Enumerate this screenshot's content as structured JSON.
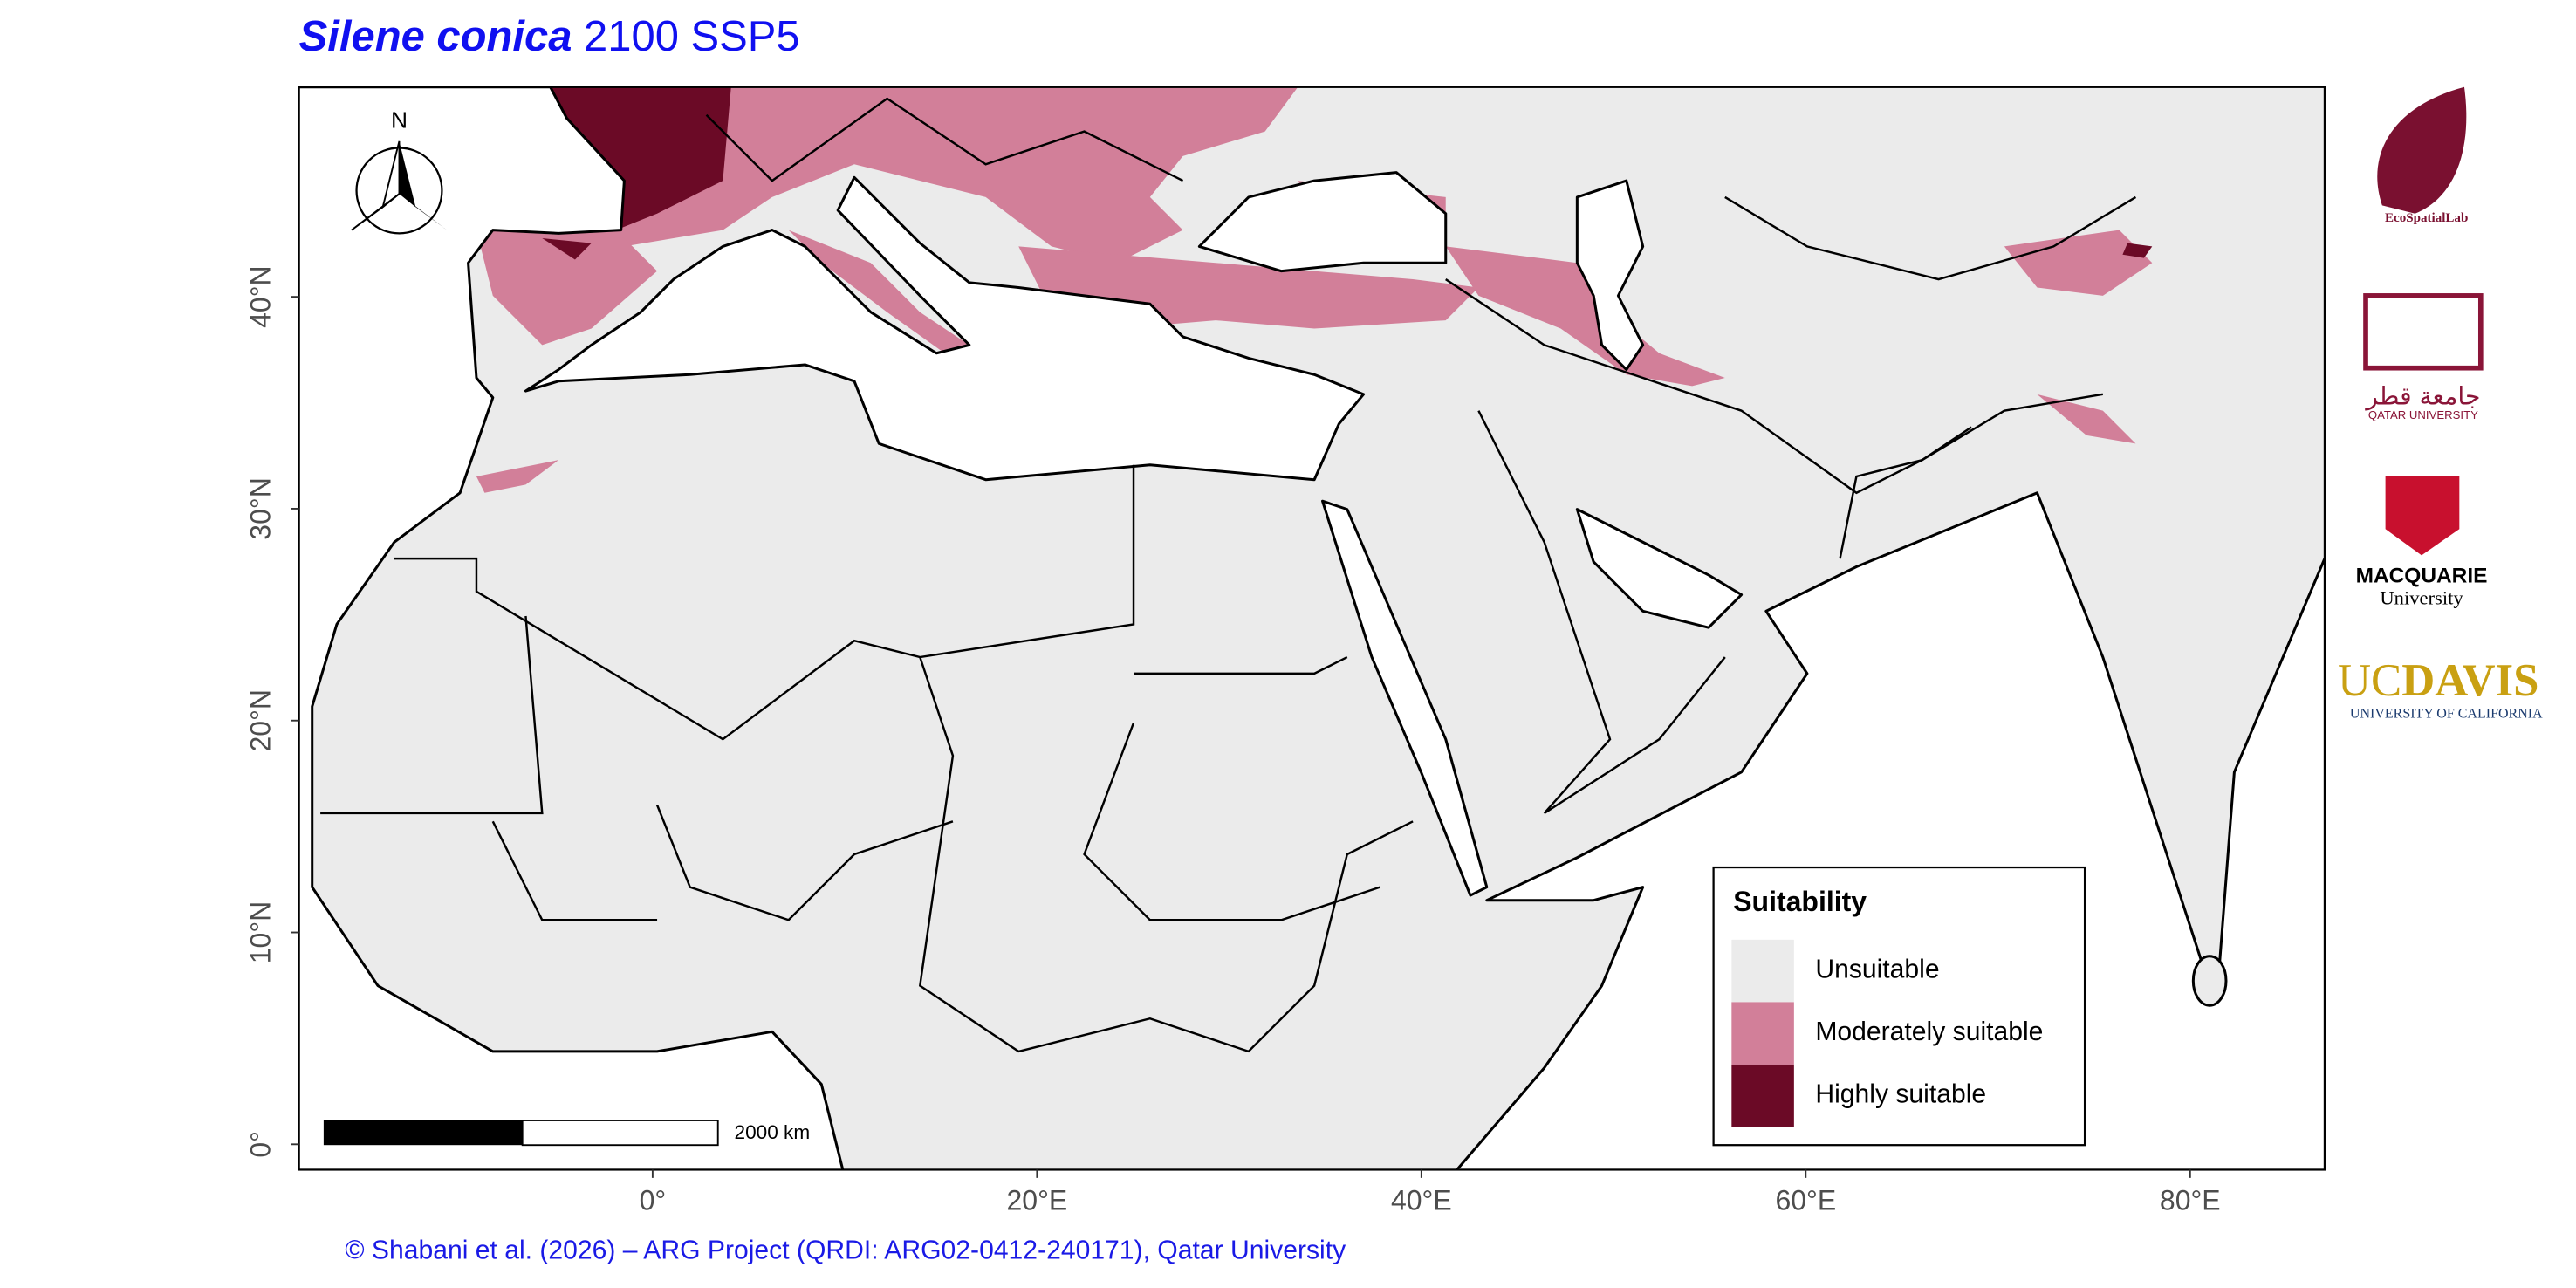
{
  "map": {
    "title": {
      "species": "Silene conica",
      "scenario": "2100 SSP5"
    },
    "xlim": [
      -18.4,
      87
    ],
    "ylim": [
      -1.2,
      49.9
    ],
    "xticks": [
      {
        "value": 0,
        "label": "0°"
      },
      {
        "value": 20,
        "label": "20°E"
      },
      {
        "value": 40,
        "label": "40°E"
      },
      {
        "value": 60,
        "label": "60°E"
      },
      {
        "value": 80,
        "label": "80°E"
      }
    ],
    "yticks": [
      {
        "value": 0,
        "label": "0°"
      },
      {
        "value": 10,
        "label": "10°N"
      },
      {
        "value": 20,
        "label": "20°N"
      },
      {
        "value": 30,
        "label": "30°N"
      },
      {
        "value": 40,
        "label": "40°N"
      }
    ],
    "legend": {
      "title": "Suitability",
      "items": [
        {
          "label": "Unsuitable",
          "color": "#ebebeb"
        },
        {
          "label": "Moderately suitable",
          "color": "#d27f99"
        },
        {
          "label": "Highly suitable",
          "color": "#6b0a26"
        }
      ]
    },
    "north": "N",
    "scale_bar": "2000 km",
    "credit": "© Shabani et al. (2026) – ARG Project (QRDI: ARG02-0412-240171), Qatar University",
    "logos": {
      "ecospatiallab": "EcoSpatialLab",
      "qatar": {
        "arabic": "جامعة قطر",
        "english": "QATAR UNIVERSITY"
      },
      "macquarie": {
        "name": "MACQUARIE",
        "sub": "University"
      },
      "ucdavis": {
        "uc": "UC",
        "davis": "DAVIS",
        "sub": "UNIVERSITY OF CALIFORNIA"
      }
    }
  }
}
